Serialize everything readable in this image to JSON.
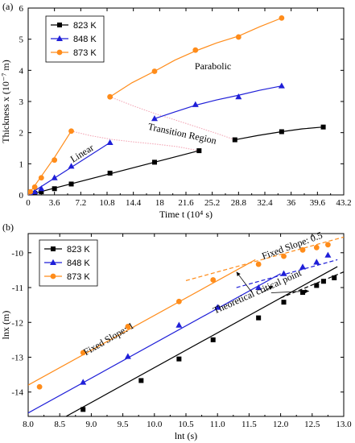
{
  "chart_data": [
    {
      "panel_label": "(a)",
      "type": "line",
      "xlabel": "Time t (10⁴ s)",
      "ylabel": "Thickness x (10⁻⁷ m)",
      "xlim": [
        0,
        43.2
      ],
      "ylim": [
        0,
        6
      ],
      "xticks": [
        0,
        3.6,
        7.2,
        10.8,
        14.4,
        18.0,
        21.6,
        25.2,
        28.8,
        32.4,
        36.0,
        39.6,
        43.2
      ],
      "xtick_labels": [
        "0",
        "3.6",
        "7.2",
        "10.8",
        "14.4",
        "18",
        "21.6",
        "25.2",
        "28.8",
        "32.4",
        "36",
        "39.6",
        "43.2"
      ],
      "yticks": [
        0,
        1,
        2,
        3,
        4,
        5,
        6
      ],
      "grid": false,
      "legend_position": "top-left",
      "series": [
        {
          "name": "823 K",
          "color": "#000000",
          "marker": "square",
          "points": [
            [
              0.3,
              0.03
            ],
            [
              0.9,
              0.05
            ],
            [
              1.8,
              0.1
            ],
            [
              3.6,
              0.2
            ],
            [
              5.9,
              0.35
            ],
            [
              11.2,
              0.7
            ],
            [
              17.3,
              1.05
            ],
            [
              23.4,
              1.42
            ],
            [
              28.3,
              1.77
            ],
            [
              34.7,
              2.03
            ],
            [
              40.4,
              2.18
            ]
          ],
          "fits": [
            [
              [
                0,
                0
              ],
              [
                23.4,
                1.42
              ]
            ],
            [
              [
                28.3,
                1.77
              ],
              [
                31.5,
                1.91
              ],
              [
                34.7,
                2.03
              ],
              [
                37.5,
                2.12
              ],
              [
                40.4,
                2.18
              ]
            ]
          ]
        },
        {
          "name": "848 K",
          "color": "#1f1fd8",
          "marker": "triangle",
          "points": [
            [
              0.3,
              0.05
            ],
            [
              0.9,
              0.1
            ],
            [
              1.8,
              0.2
            ],
            [
              3.6,
              0.55
            ],
            [
              5.9,
              0.92
            ],
            [
              11.2,
              1.68
            ],
            [
              17.3,
              2.45
            ],
            [
              22.9,
              2.9
            ],
            [
              28.8,
              3.15
            ],
            [
              34.7,
              3.5
            ]
          ],
          "fits": [
            [
              [
                0,
                0
              ],
              [
                11.2,
                1.68
              ]
            ],
            [
              [
                17.3,
                2.45
              ],
              [
                20,
                2.66
              ],
              [
                22.9,
                2.88
              ],
              [
                25.8,
                3.05
              ],
              [
                28.8,
                3.2
              ],
              [
                31.7,
                3.36
              ],
              [
                34.7,
                3.5
              ]
            ]
          ]
        },
        {
          "name": "873 K",
          "color": "#ff8c1a",
          "marker": "circle",
          "points": [
            [
              0.3,
              0.1
            ],
            [
              0.9,
              0.25
            ],
            [
              1.8,
              0.55
            ],
            [
              3.6,
              1.12
            ],
            [
              5.9,
              2.05
            ],
            [
              11.2,
              3.15
            ],
            [
              17.3,
              3.97
            ],
            [
              22.9,
              4.65
            ],
            [
              28.8,
              5.07
            ],
            [
              34.7,
              5.68
            ]
          ],
          "fits": [
            [
              [
                0,
                0
              ],
              [
                1.8,
                0.6
              ],
              [
                3.6,
                1.2
              ],
              [
                5.9,
                2.05
              ]
            ],
            [
              [
                11.2,
                3.15
              ],
              [
                14.2,
                3.6
              ],
              [
                17.3,
                3.97
              ],
              [
                20.1,
                4.33
              ],
              [
                22.9,
                4.62
              ],
              [
                25.8,
                4.88
              ],
              [
                28.8,
                5.1
              ],
              [
                31.7,
                5.4
              ],
              [
                34.7,
                5.68
              ]
            ]
          ]
        }
      ],
      "transition_curves": [
        [
          [
            5.9,
            2.05
          ],
          [
            8.6,
            1.9
          ],
          [
            11.5,
            1.78
          ],
          [
            14.5,
            1.7
          ],
          [
            17.5,
            1.63
          ],
          [
            20.4,
            1.55
          ],
          [
            23.4,
            1.42
          ]
        ],
        [
          [
            11.2,
            3.15
          ],
          [
            14.5,
            2.85
          ],
          [
            17.5,
            2.6
          ],
          [
            20.5,
            2.38
          ],
          [
            23.5,
            2.15
          ],
          [
            26,
            1.96
          ],
          [
            28.3,
            1.77
          ]
        ]
      ],
      "annotations": [
        {
          "text": "Linear",
          "x": 7.6,
          "y": 1.25,
          "rotate": -32
        },
        {
          "text": "Transition Region",
          "x": 21.0,
          "y": 1.87,
          "rotate": 12
        },
        {
          "text": "Parabolic",
          "x": 25.3,
          "y": 4.03,
          "rotate": 0
        }
      ]
    },
    {
      "panel_label": "(b)",
      "type": "scatter",
      "xlabel": "lnt (s)",
      "ylabel": "lnx (m)",
      "xlim": [
        8.0,
        13.0
      ],
      "ylim": [
        -14.7,
        -9.45
      ],
      "xticks": [
        8.0,
        8.5,
        9.0,
        9.5,
        10.0,
        10.5,
        11.0,
        11.5,
        12.0,
        12.5,
        13.0
      ],
      "xtick_labels": [
        "8.0",
        "8.5",
        "9.0",
        "9.5",
        "10.0",
        "10.5",
        "11.0",
        "11.5",
        "12.0",
        "12.5",
        "13.0"
      ],
      "yticks": [
        -14,
        -13,
        -12,
        -11,
        -10
      ],
      "grid": false,
      "legend_position": "top-left",
      "series": [
        {
          "name": "823 K",
          "color": "#000000",
          "marker": "square",
          "points": [
            [
              8.87,
              -14.5
            ],
            [
              9.79,
              -13.67
            ],
            [
              10.39,
              -13.05
            ],
            [
              10.93,
              -12.5
            ],
            [
              11.65,
              -11.87
            ],
            [
              12.05,
              -11.42
            ],
            [
              12.35,
              -11.14
            ],
            [
              12.57,
              -10.94
            ],
            [
              12.68,
              -10.82
            ],
            [
              12.85,
              -10.72
            ]
          ],
          "fit_slope1": [
            [
              8.6,
              -14.7
            ],
            [
              12.9,
              -10.4
            ]
          ],
          "fit_slope05": [
            [
              12.0,
              -11.3
            ],
            [
              13.0,
              -10.55
            ]
          ]
        },
        {
          "name": "848 K",
          "color": "#1f1fd8",
          "marker": "triangle",
          "points": [
            [
              8.87,
              -13.72
            ],
            [
              9.58,
              -12.98
            ],
            [
              10.39,
              -12.08
            ],
            [
              11.0,
              -11.57
            ],
            [
              11.65,
              -11.0
            ],
            [
              12.05,
              -10.6
            ],
            [
              12.35,
              -10.41
            ],
            [
              12.57,
              -10.27
            ],
            [
              12.75,
              -10.07
            ]
          ],
          "fit_slope1": [
            [
              8.0,
              -14.6
            ],
            [
              12.0,
              -10.6
            ]
          ],
          "fit_slope05": [
            [
              11.3,
              -11.0
            ],
            [
              12.9,
              -10.2
            ]
          ]
        },
        {
          "name": "873 K",
          "color": "#ff8c1a",
          "marker": "circle",
          "points": [
            [
              8.18,
              -13.85
            ],
            [
              8.87,
              -12.87
            ],
            [
              9.58,
              -12.12
            ],
            [
              10.39,
              -11.4
            ],
            [
              10.93,
              -10.78
            ],
            [
              11.65,
              -10.33
            ],
            [
              12.05,
              -10.1
            ],
            [
              12.35,
              -9.92
            ],
            [
              12.57,
              -9.85
            ],
            [
              12.75,
              -9.77
            ]
          ],
          "fit_slope1": [
            [
              8.0,
              -13.8
            ],
            [
              11.6,
              -10.2
            ]
          ],
          "fit_slope05": [
            [
              10.5,
              -10.8
            ],
            [
              13.0,
              -9.55
            ]
          ]
        }
      ],
      "annotations": [
        {
          "text": "Fixed Slope: 1",
          "x": 9.3,
          "y": -12.55,
          "rotate": -30
        },
        {
          "text": "Fixed Slope: 0.5",
          "x": 12.2,
          "y": -9.88,
          "rotate": -20
        },
        {
          "text": "Theoretical critical point",
          "x": 11.65,
          "y": -11.2,
          "rotate": -24
        }
      ],
      "critical_point_arrows": [
        {
          "from": [
            11.55,
            -11.15
          ],
          "to": [
            11.3,
            -10.55
          ]
        },
        {
          "from": [
            11.7,
            -11.15
          ],
          "to": [
            11.88,
            -10.95
          ]
        },
        {
          "from": [
            11.85,
            -11.15
          ],
          "to": [
            12.45,
            -11.1
          ]
        }
      ]
    }
  ]
}
